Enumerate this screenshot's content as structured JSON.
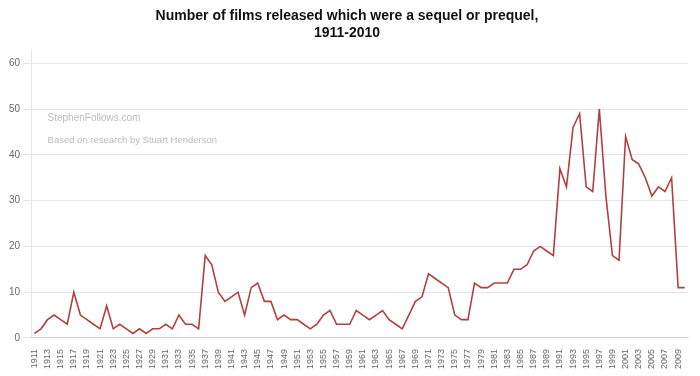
{
  "chart_data": {
    "type": "line",
    "title": "Number of films released which were a sequel or prequel,\n1911-2010",
    "annotations": [
      "StephenFollows.com",
      "Based on research by Stuart Henderson"
    ],
    "color": "#b34040",
    "x": [
      1911,
      1912,
      1913,
      1914,
      1915,
      1916,
      1917,
      1918,
      1919,
      1920,
      1921,
      1922,
      1923,
      1924,
      1925,
      1926,
      1927,
      1928,
      1929,
      1930,
      1931,
      1932,
      1933,
      1934,
      1935,
      1936,
      1937,
      1938,
      1939,
      1940,
      1941,
      1942,
      1943,
      1944,
      1945,
      1946,
      1947,
      1948,
      1949,
      1950,
      1951,
      1952,
      1953,
      1954,
      1955,
      1956,
      1957,
      1958,
      1959,
      1960,
      1961,
      1962,
      1963,
      1964,
      1965,
      1966,
      1967,
      1968,
      1969,
      1970,
      1971,
      1972,
      1973,
      1974,
      1975,
      1976,
      1977,
      1978,
      1979,
      1980,
      1981,
      1982,
      1983,
      1984,
      1985,
      1986,
      1987,
      1988,
      1989,
      1990,
      1991,
      1992,
      1993,
      1994,
      1995,
      1996,
      1997,
      1998,
      1999,
      2000,
      2001,
      2002,
      2003,
      2004,
      2005,
      2006,
      2007,
      2008,
      2009,
      2010
    ],
    "values": [
      1,
      2,
      4,
      5,
      4,
      3,
      10,
      5,
      4,
      3,
      2,
      7,
      2,
      3,
      2,
      1,
      2,
      1,
      2,
      2,
      3,
      2,
      5,
      3,
      3,
      2,
      18,
      16,
      10,
      8,
      9,
      10,
      5,
      11,
      12,
      8,
      8,
      4,
      5,
      4,
      4,
      3,
      2,
      3,
      5,
      6,
      3,
      3,
      3,
      6,
      5,
      4,
      5,
      6,
      4,
      3,
      2,
      5,
      8,
      9,
      14,
      13,
      12,
      11,
      5,
      4,
      4,
      12,
      11,
      11,
      12,
      12,
      12,
      15,
      15,
      16,
      19,
      20,
      19,
      18,
      37,
      33,
      46,
      49,
      33,
      32,
      50,
      31,
      18,
      17,
      44,
      39,
      38,
      35,
      31,
      33,
      32,
      35,
      11,
      11
    ],
    "xlim": [
      1910.5,
      2010.5
    ],
    "xticks": [
      1911,
      1913,
      1915,
      1917,
      1919,
      1921,
      1923,
      1925,
      1927,
      1929,
      1931,
      1933,
      1935,
      1937,
      1939,
      1941,
      1943,
      1945,
      1947,
      1949,
      1951,
      1953,
      1955,
      1957,
      1959,
      1961,
      1963,
      1965,
      1967,
      1969,
      1971,
      1973,
      1975,
      1977,
      1979,
      1981,
      1983,
      1985,
      1987,
      1989,
      1991,
      1993,
      1995,
      1997,
      1999,
      2001,
      2003,
      2005,
      2007,
      2009
    ],
    "ylim": [
      0,
      63
    ],
    "yticks": [
      0,
      10,
      20,
      30,
      40,
      50,
      60
    ],
    "grid": "y"
  }
}
